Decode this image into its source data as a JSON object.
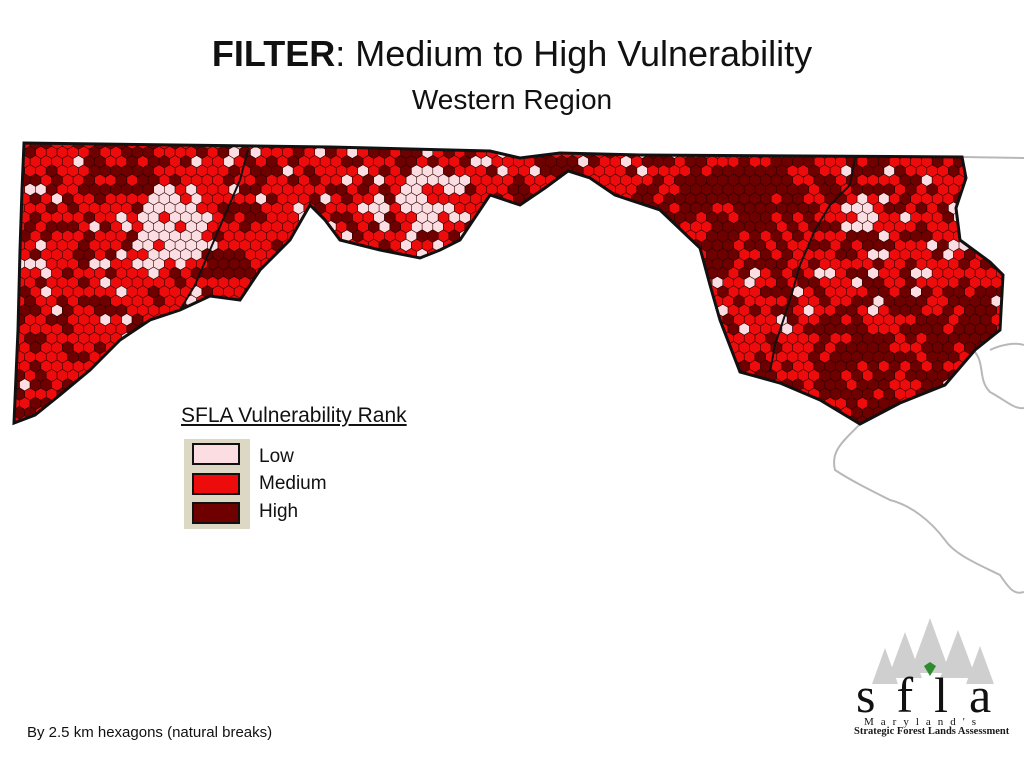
{
  "title": {
    "bold": "FILTER",
    "rest": ":  Medium to High Vulnerability"
  },
  "subtitle": "Western Region",
  "legend": {
    "title": "SFLA Vulnerability Rank",
    "items": [
      {
        "label": "Low",
        "color": "#fbdde2"
      },
      {
        "label": "Medium",
        "color": "#ee0b0b"
      },
      {
        "label": "High",
        "color": "#6e0000"
      }
    ]
  },
  "footnote": "By 2.5 km hexagons (natural breaks)",
  "logo": {
    "letters": "sfla",
    "state": "Maryland's",
    "name": "Strategic Forest Lands Assessment"
  },
  "colors": {
    "boundary": "#111111",
    "neighbor_line": "#b8b8b8",
    "hex_edge": "#2a0000"
  }
}
